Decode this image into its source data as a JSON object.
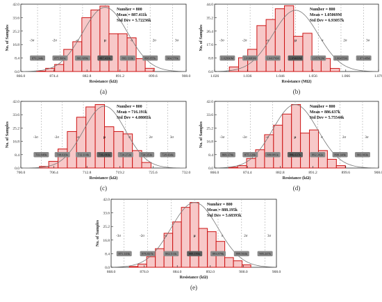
{
  "chart_data": [
    {
      "type": "bar",
      "panel_label": "(a)",
      "xlabel": "Resistance (kΩ)",
      "ylabel": "No. of Samples",
      "xlim": [
        866.0,
        908.0
      ],
      "ylim": [
        0,
        42.0
      ],
      "xticks": [
        "866.0",
        "874.4",
        "882.8",
        "891.2",
        "899.6",
        "908.0"
      ],
      "yticks": [
        "0.0",
        "8.4",
        "16.8",
        "25.2",
        "33.6",
        "42.0"
      ],
      "bin_edges": [
        870.0,
        872.3,
        874.6,
        876.9,
        879.2,
        881.5,
        883.8,
        886.1,
        888.4,
        890.7,
        893.0,
        895.3,
        897.6,
        899.9
      ],
      "values": [
        0.3,
        2.0,
        4.4,
        13.8,
        18.6,
        33.6,
        38.4,
        40.8,
        23.5,
        23.5,
        21.0,
        8.0,
        2.0
      ],
      "curve": {
        "mean": 887.411,
        "sd": 5.72236,
        "peak": 40.0
      },
      "stats": {
        "number": "Number = 800",
        "mean": "Mean = 887.411k",
        "sd": "Std Dev = 5.72236k"
      },
      "sigma_labels": [
        "-3σ",
        "-2σ",
        "-σ",
        "μ",
        "σ",
        "2σ",
        "3σ"
      ],
      "sigma_values": [
        "870.244k",
        "875.966k",
        "881.689k",
        "887.411k",
        "893.133k",
        "898.855k",
        "904.578k"
      ]
    },
    {
      "type": "bar",
      "panel_label": "(b)",
      "xlabel": "Resistance (MΩ)",
      "ylabel": "No. of Samples",
      "xlim": [
        1.026,
        1.076
      ],
      "ylim": [
        0,
        44.0
      ],
      "xticks": [
        "1.026",
        "1.036",
        "1.046",
        "1.056",
        "1.066",
        "1.076"
      ],
      "yticks": [
        "0.0",
        "8.8",
        "17.6",
        "26.4",
        "35.2",
        "44.0"
      ],
      "bin_edges": [
        1.0305,
        1.0333,
        1.0361,
        1.0389,
        1.0417,
        1.0445,
        1.0473,
        1.0501,
        1.0529,
        1.0557,
        1.0585,
        1.0613,
        1.0641
      ],
      "values": [
        3.0,
        9.0,
        14.5,
        30.0,
        34.0,
        41.0,
        43.0,
        23.0,
        25.0,
        9.0,
        8.5,
        2.0
      ],
      "curve": {
        "mean": 1.05069,
        "sd": 0.00693,
        "peak": 40.0
      },
      "stats": {
        "number": "Number = 800",
        "mean": "Mean = 1.05069M",
        "sd": "Std Dev = 6.93057k"
      },
      "sigma_labels": [
        "-3σ",
        "-2σ",
        "-σ",
        "μ",
        "σ",
        "2σ",
        "3σ"
      ],
      "sigma_values": [
        "1.02990M",
        "1.03683M",
        "1.04376M",
        "1.05069M",
        "1.05762M",
        "1.06455M",
        "1.07148M"
      ]
    },
    {
      "type": "bar",
      "panel_label": "(c)",
      "xlabel": "Resistance (kΩ)",
      "ylabel": "No. of Samples",
      "xlim": [
        700.0,
        732.0
      ],
      "ylim": [
        0,
        42.0
      ],
      "xticks": [
        "700.0",
        "706.4",
        "712.8",
        "719.2",
        "725.6",
        "732.0"
      ],
      "yticks": [
        "0.0",
        "8.4",
        "16.8",
        "25.2",
        "33.6",
        "42.0"
      ],
      "bin_edges": [
        703.6,
        705.4,
        707.2,
        709.0,
        710.8,
        712.6,
        714.4,
        716.2,
        718.0,
        719.8,
        721.6,
        723.4,
        725.2
      ],
      "values": [
        1.0,
        4.2,
        12.0,
        23.0,
        32.0,
        38.5,
        40.0,
        26.0,
        23.0,
        21.5,
        11.0,
        3.5
      ],
      "curve": {
        "mean": 716.191,
        "sd": 4.08081,
        "peak": 39.0
      },
      "stats": {
        "number": "Number = 800",
        "mean": "Mean = 716.191k",
        "sd": "Std Dev = 4.08081k"
      },
      "sigma_labels": [
        "-3σ",
        "-2σ",
        "-σ",
        "μ",
        "σ",
        "2σ",
        "3σ"
      ],
      "sigma_values": [
        "703.949k",
        "708.029k",
        "712.110k",
        "716.191k",
        "720.272k",
        "724.353k",
        "728.434k"
      ]
    },
    {
      "type": "bar",
      "panel_label": "(d)",
      "xlabel": "Resistance (kΩ)",
      "ylabel": "No. of Samples",
      "xlim": [
        866.0,
        908.0
      ],
      "ylim": [
        0,
        42.0
      ],
      "xticks": [
        "866.0",
        "874.4",
        "882.8",
        "891.2",
        "899.6",
        "908.0"
      ],
      "yticks": [
        "0.0",
        "8.4",
        "16.8",
        "25.2",
        "33.6",
        "42.0"
      ],
      "bin_edges": [
        869.6,
        871.9,
        874.2,
        876.5,
        878.8,
        881.1,
        883.4,
        885.7,
        888.0,
        890.3,
        892.6,
        894.9,
        897.2,
        899.5
      ],
      "values": [
        0.5,
        1.5,
        6.0,
        11.5,
        21.0,
        27.0,
        34.0,
        40.0,
        22.0,
        24.0,
        11.0,
        5.5,
        1.5
      ],
      "curve": {
        "mean": 886.637,
        "sd": 5.75544,
        "peak": 40.0
      },
      "stats": {
        "number": "Number = 800",
        "mean": "Mean = 886.637k",
        "sd": "Std Dev = 5.75544k"
      },
      "sigma_labels": [
        "-3σ",
        "-2σ",
        "-σ",
        "μ",
        "σ",
        "2σ",
        "3σ"
      ],
      "sigma_values": [
        "869.370k",
        "875.126k",
        "880.881k",
        "886.637k",
        "892.392k",
        "898.148k",
        "903.903k"
      ]
    },
    {
      "type": "bar",
      "panel_label": "(e)",
      "xlabel": "Resistance (kΩ)",
      "ylabel": "No. of Samples",
      "xlim": [
        868.0,
        908.0
      ],
      "ylim": [
        0,
        42.0
      ],
      "xticks": [
        "868.0",
        "876.0",
        "884.0",
        "892.0",
        "900.0",
        "908.0"
      ],
      "yticks": [
        "0.0",
        "8.4",
        "16.8",
        "25.2",
        "33.6",
        "42.0"
      ],
      "bin_edges": [
        872.4,
        874.5,
        876.6,
        878.7,
        880.8,
        882.9,
        885.0,
        887.1,
        889.2,
        891.3,
        893.4,
        895.5,
        897.6,
        899.7,
        901.8
      ],
      "values": [
        0.5,
        2.0,
        6.5,
        11.5,
        21.0,
        28.0,
        37.0,
        40.0,
        24.0,
        22.0,
        16.0,
        6.0,
        4.0,
        1.5
      ],
      "curve": {
        "mean": 888.195,
        "sd": 5.68393,
        "peak": 40.0
      },
      "stats": {
        "number": "Number = 800",
        "mean": "Mean = 888.195k",
        "sd": "Std Dev = 5.68393k"
      },
      "sigma_labels": [
        "-3σ",
        "-2σ",
        "-σ",
        "μ",
        "σ",
        "2σ",
        "3σ"
      ],
      "sigma_values": [
        "871.143k",
        "876.827k",
        "882.511k",
        "888.195k",
        "893.879k",
        "899.563k",
        "905.247k"
      ]
    }
  ],
  "colors": {
    "bar_fill": "#f7c8c8",
    "bar_stroke": "#cc1111",
    "curve": "#777777",
    "sigma_line": "#aaaaaa",
    "sigma_box": "#8a8a8a",
    "sigma_box_highlight": "#5e5e5e",
    "sigma_box_text": "#ffffff",
    "axis": "#222222"
  }
}
